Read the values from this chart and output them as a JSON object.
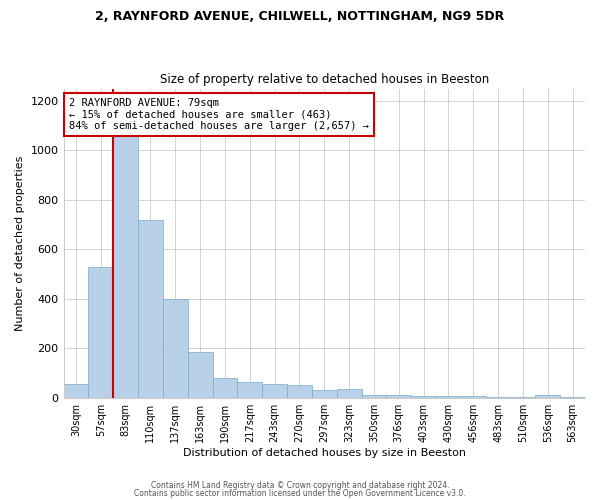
{
  "title_line1": "2, RAYNFORD AVENUE, CHILWELL, NOTTINGHAM, NG9 5DR",
  "title_line2": "Size of property relative to detached houses in Beeston",
  "xlabel": "Distribution of detached houses by size in Beeston",
  "ylabel": "Number of detached properties",
  "bar_labels": [
    "30sqm",
    "57sqm",
    "83sqm",
    "110sqm",
    "137sqm",
    "163sqm",
    "190sqm",
    "217sqm",
    "243sqm",
    "270sqm",
    "297sqm",
    "323sqm",
    "350sqm",
    "376sqm",
    "403sqm",
    "430sqm",
    "456sqm",
    "483sqm",
    "510sqm",
    "536sqm",
    "563sqm"
  ],
  "bar_values": [
    55,
    530,
    1150,
    720,
    400,
    185,
    80,
    65,
    55,
    50,
    30,
    35,
    10,
    10,
    5,
    5,
    5,
    3,
    3,
    10,
    3
  ],
  "bar_color": "#b8d0e8",
  "bar_edge_color": "#7aaac8",
  "property_line_x": 1.5,
  "annotation_text": "2 RAYNFORD AVENUE: 79sqm\n← 15% of detached houses are smaller (463)\n84% of semi-detached houses are larger (2,657) →",
  "annotation_box_color": "#ffffff",
  "annotation_box_edge": "#cc0000",
  "vertical_line_color": "#cc0000",
  "ylim": [
    0,
    1250
  ],
  "yticks": [
    0,
    200,
    400,
    600,
    800,
    1000,
    1200
  ],
  "footer_line1": "Contains HM Land Registry data © Crown copyright and database right 2024.",
  "footer_line2": "Contains public sector information licensed under the Open Government Licence v3.0.",
  "background_color": "#ffffff",
  "grid_color": "#cccccc",
  "fig_width": 6.0,
  "fig_height": 5.0,
  "fig_dpi": 100
}
